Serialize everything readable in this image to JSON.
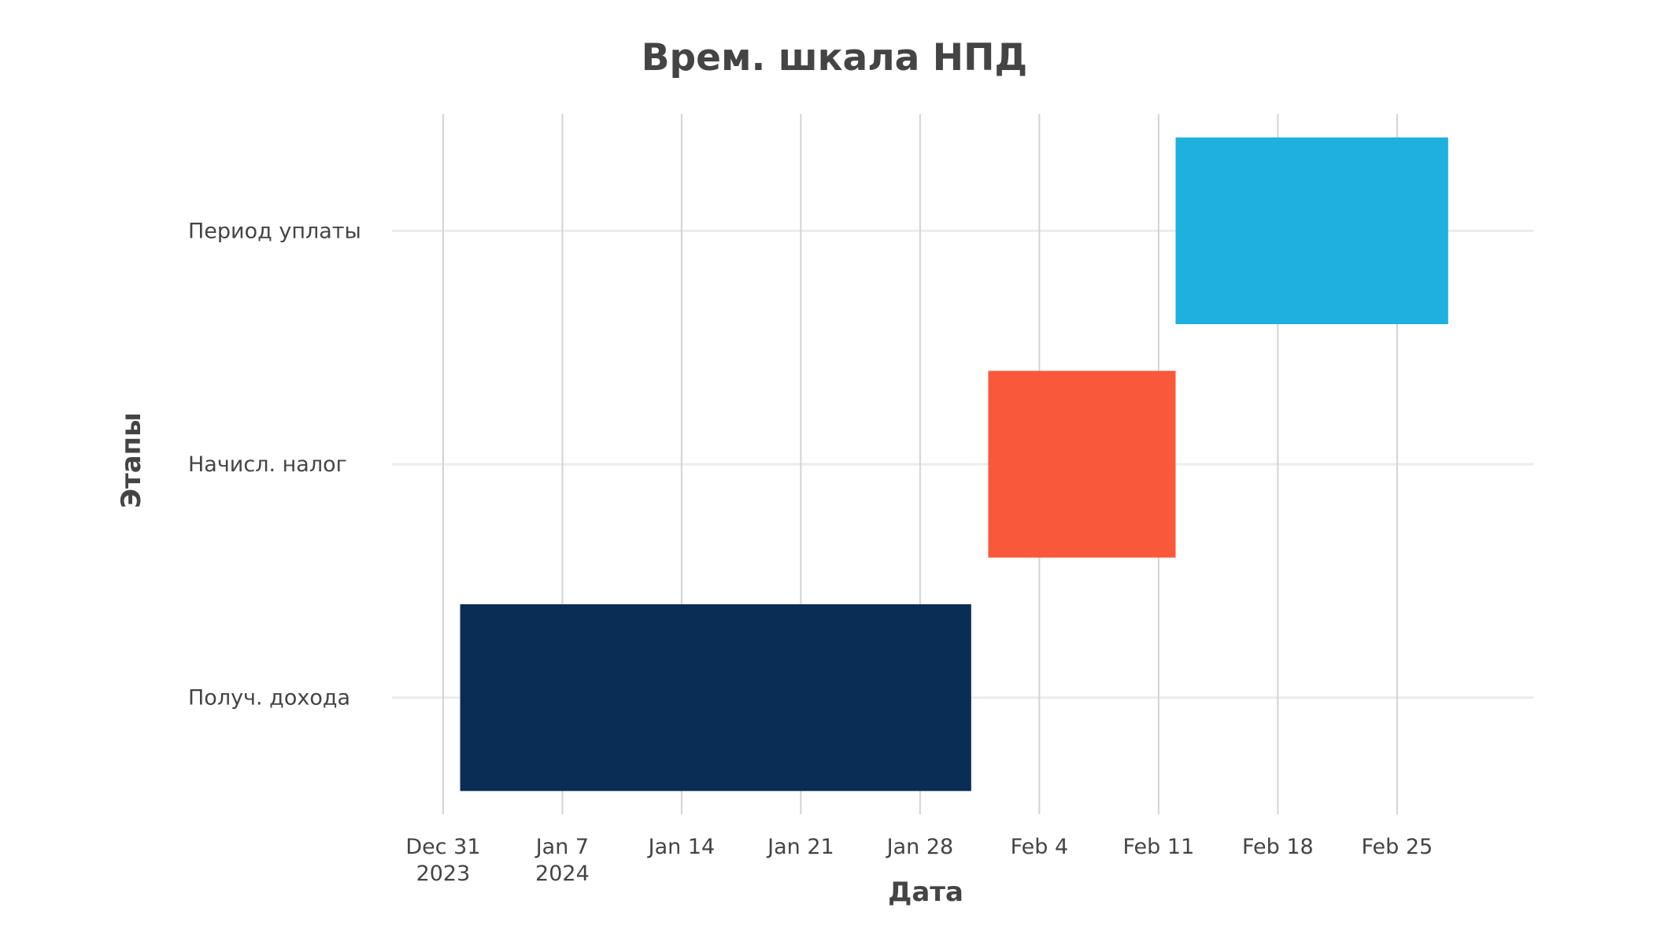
{
  "chart_data": {
    "type": "bar",
    "orientation": "horizontal",
    "title": "Врем. шкала НПД",
    "xlabel": "Дата",
    "ylabel": "Этапы",
    "categories": [
      "Получ. дохода",
      "Начисл. налог",
      "Период уплаты"
    ],
    "x_ticks": [
      {
        "date": "2023-12-31",
        "label": "Dec 31",
        "sublabel": "2023"
      },
      {
        "date": "2024-01-07",
        "label": "Jan 7",
        "sublabel": "2024"
      },
      {
        "date": "2024-01-14",
        "label": "Jan 14",
        "sublabel": ""
      },
      {
        "date": "2024-01-21",
        "label": "Jan 21",
        "sublabel": ""
      },
      {
        "date": "2024-01-28",
        "label": "Jan 28",
        "sublabel": ""
      },
      {
        "date": "2024-02-04",
        "label": "Feb 4",
        "sublabel": ""
      },
      {
        "date": "2024-02-11",
        "label": "Feb 11",
        "sublabel": ""
      },
      {
        "date": "2024-02-18",
        "label": "Feb 18",
        "sublabel": ""
      },
      {
        "date": "2024-02-25",
        "label": "Feb 25",
        "sublabel": ""
      }
    ],
    "series": [
      {
        "category": "Получ. дохода",
        "start": "2024-01-01",
        "end": "2024-01-31",
        "color": "#0a2d55"
      },
      {
        "category": "Начисл. налог",
        "start": "2024-02-01",
        "end": "2024-02-12",
        "color": "#fa583b"
      },
      {
        "category": "Период уплаты",
        "start": "2024-02-12",
        "end": "2024-02-28",
        "color": "#1eb1df"
      }
    ],
    "xlim": [
      "2023-12-28",
      "2024-03-04"
    ],
    "grid": true,
    "legend": "none"
  }
}
